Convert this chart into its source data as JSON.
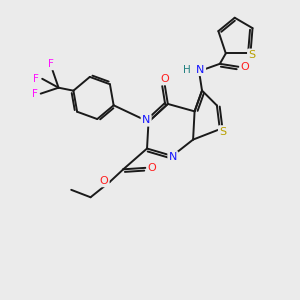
{
  "background_color": "#ebebeb",
  "bond_color": "#1a1a1a",
  "bond_width": 1.4,
  "atom_colors": {
    "N": "#1515ff",
    "O": "#ff2020",
    "S_main": "#b8a000",
    "S_thio": "#b8a000",
    "F": "#ff10ff",
    "H": "#208080",
    "C": "#1a1a1a"
  },
  "figsize": [
    3.0,
    3.0
  ],
  "dpi": 100
}
